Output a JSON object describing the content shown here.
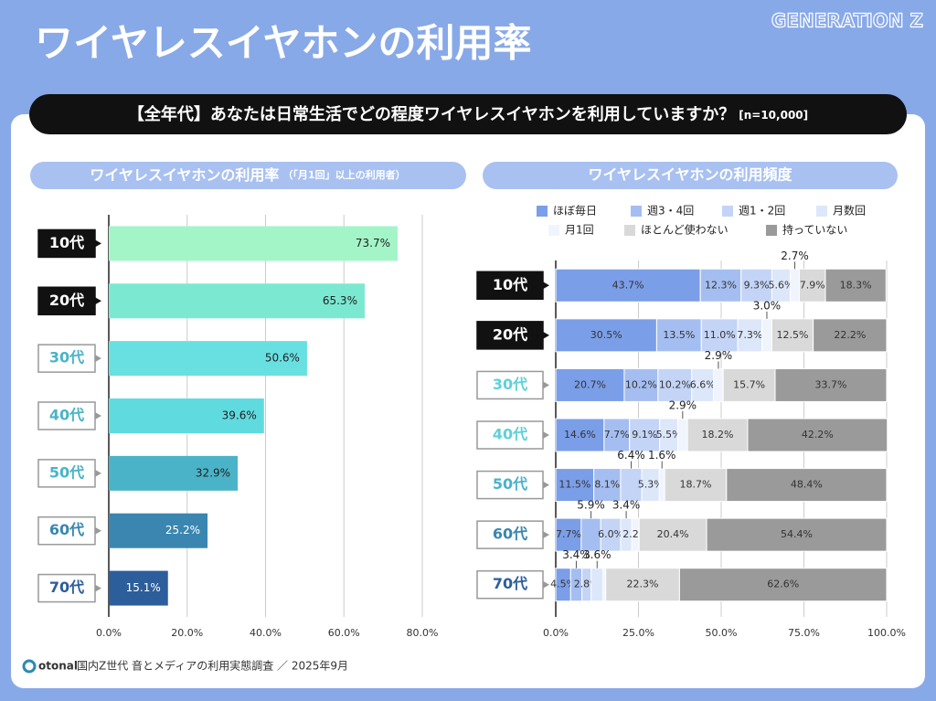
{
  "header": {
    "title": "ワイヤレスイヤホンの利用率",
    "brand": "GENERATION Z"
  },
  "question": {
    "text": "【全年代】あなたは日常生活でどの程度ワイヤレスイヤホンを利用していますか？",
    "n": "[n=10,000]"
  },
  "chart_data": [
    {
      "type": "hbar",
      "title": "ワイヤレスイヤホンの利用率",
      "subtitle": "（「月1回」以上の利用者）",
      "categories": [
        "10代",
        "20代",
        "30代",
        "40代",
        "50代",
        "60代",
        "70代"
      ],
      "values": [
        73.7,
        65.3,
        50.6,
        39.6,
        32.9,
        25.2,
        15.1
      ],
      "value_labels": [
        "73.7%",
        "65.3%",
        "50.6%",
        "39.6%",
        "32.9%",
        "25.2%",
        "15.1%"
      ],
      "colors": [
        "#a3f5c8",
        "#7be8d2",
        "#68e0e2",
        "#5fdbe0",
        "#4ab3c8",
        "#3a86b0",
        "#2c5e9b"
      ],
      "xlim": [
        0,
        80
      ],
      "xticks": [
        {
          "value": 0,
          "label": "0.0%"
        },
        {
          "value": 20,
          "label": "20.0%"
        },
        {
          "value": 40,
          "label": "40.0%"
        },
        {
          "value": 60,
          "label": "60.0%"
        },
        {
          "value": 80,
          "label": "80.0%"
        }
      ],
      "grid": true
    },
    {
      "type": "stacked-hbar",
      "title": "ワイヤレスイヤホンの利用頻度",
      "categories": [
        "10代",
        "20代",
        "30代",
        "40代",
        "50代",
        "60代",
        "70代"
      ],
      "series": [
        {
          "name": "ほぼ毎日",
          "color": "#7b9ee8",
          "values": [
            43.7,
            30.5,
            20.7,
            14.6,
            11.5,
            7.7,
            4.5
          ],
          "value_labels": [
            "43.7%",
            "30.5%",
            "20.7%",
            "14.6%",
            "11.5%",
            "7.7%",
            "4.5%"
          ]
        },
        {
          "name": "週3・4回",
          "color": "#a5bef1",
          "values": [
            12.3,
            13.5,
            10.2,
            7.7,
            8.1,
            5.9,
            3.4
          ],
          "value_labels": [
            "12.3%",
            "13.5%",
            "10.2%",
            "7.7%",
            "8.1%",
            "5.9%",
            "3.4%"
          ]
        },
        {
          "name": "週1・2回",
          "color": "#c4d4f6",
          "values": [
            9.3,
            11.0,
            10.2,
            9.1,
            6.4,
            6.0,
            2.8
          ],
          "value_labels": [
            "9.3%",
            "11.0%",
            "10.2%",
            "9.1%",
            "6.4%",
            "6.0%",
            "2.8%"
          ]
        },
        {
          "name": "月数回",
          "color": "#dde7fa",
          "values": [
            5.6,
            7.3,
            6.6,
            5.5,
            5.3,
            3.4,
            3.6
          ],
          "value_labels": [
            "5.6%",
            "7.3%",
            "6.6%",
            "5.5%",
            "5.3%",
            "3.4%",
            "3.6%"
          ]
        },
        {
          "name": "月1回",
          "color": "#f0f4fd",
          "values": [
            2.7,
            3.0,
            2.9,
            2.9,
            1.6,
            2.2,
            0.8
          ],
          "value_labels": [
            "2.7%",
            "3.0%",
            "2.9%",
            "2.9%",
            "1.6%",
            "2.2%",
            null
          ]
        },
        {
          "name": "ほとんど使わない",
          "color": "#d9d9d9",
          "values": [
            7.9,
            12.5,
            15.7,
            18.2,
            18.7,
            20.4,
            22.3
          ],
          "value_labels": [
            "7.9%",
            "12.5%",
            "15.7%",
            "18.2%",
            "18.7%",
            "20.4%",
            "22.3%"
          ]
        },
        {
          "name": "持っていない",
          "color": "#9a9a9a",
          "values": [
            18.3,
            22.2,
            33.7,
            42.2,
            48.4,
            54.4,
            62.6
          ],
          "value_labels": [
            "18.3%",
            "22.2%",
            "33.7%",
            "42.2%",
            "48.4%",
            "54.4%",
            "62.6%"
          ]
        }
      ],
      "xlim": [
        0,
        100
      ],
      "xticks": [
        {
          "value": 0,
          "label": "0.0%"
        },
        {
          "value": 25,
          "label": "25.0%"
        },
        {
          "value": 50,
          "label": "50.0%"
        },
        {
          "value": 75,
          "label": "75.0%"
        },
        {
          "value": 100,
          "label": "100.0%"
        }
      ],
      "grid": true
    }
  ],
  "footer": {
    "logo": "otonal",
    "source": "国内Z世代 音とメディアの利用実態調査 ／ 2025年9月"
  }
}
